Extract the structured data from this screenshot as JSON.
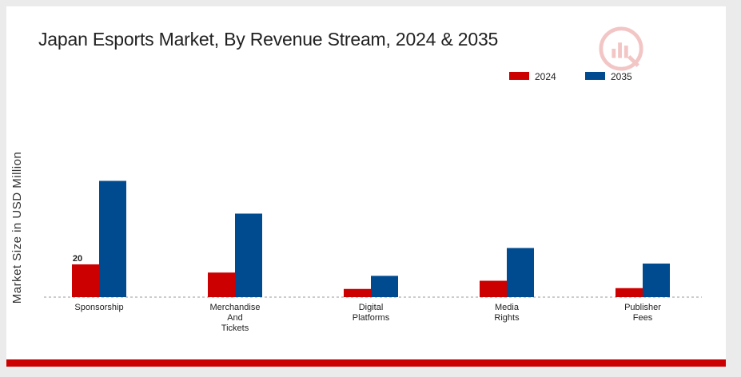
{
  "chart_data": {
    "type": "bar",
    "title": "Japan Esports Market, By Revenue Stream, 2024 & 2035",
    "ylabel": "Market Size in USD Million",
    "xlabel": "",
    "categories": [
      [
        "Sponsorship"
      ],
      [
        "Merchandise",
        "And",
        "Tickets"
      ],
      [
        "Digital",
        "Platforms"
      ],
      [
        "Media",
        "Rights"
      ],
      [
        "Publisher",
        "Fees"
      ]
    ],
    "series": [
      {
        "name": "2024",
        "color": "#cc0000",
        "values": [
          20,
          15,
          5,
          10,
          5.5
        ]
      },
      {
        "name": "2035",
        "color": "#004a8f",
        "values": [
          71,
          51,
          13,
          30,
          20.5
        ]
      }
    ],
    "data_labels": [
      {
        "series": 0,
        "index": 0,
        "text": "20"
      }
    ],
    "ylim": [
      0,
      100
    ],
    "grid": false,
    "legend_position": "top-right"
  }
}
